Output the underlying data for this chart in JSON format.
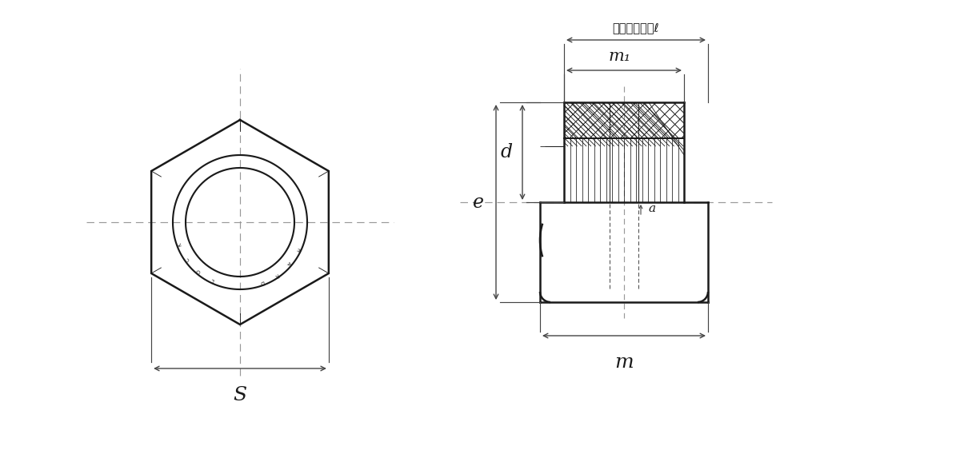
{
  "bg_color": "#ffffff",
  "line_color": "#1a1a1a",
  "dim_color": "#444444",
  "dash_color": "#999999",
  "label_s": "S",
  "label_e": "e",
  "label_d": "d",
  "label_m": "m",
  "label_m1": "m₁",
  "label_a": "a",
  "label_set": "セットの高さℓ"
}
